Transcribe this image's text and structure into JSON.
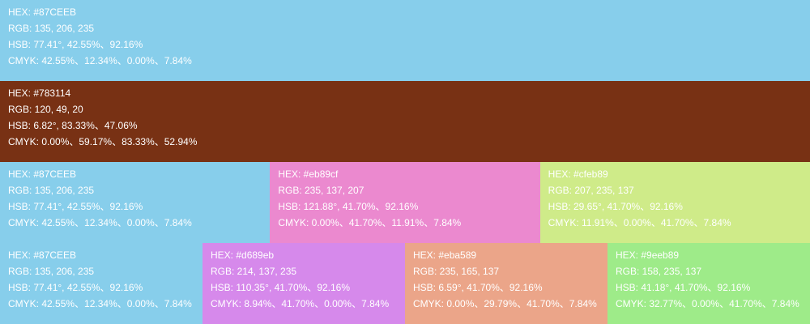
{
  "rows": [
    {
      "blocks": [
        {
          "color": "#87CEEB",
          "lines": [
            "HEX: #87CEEB",
            "RGB: 135, 206, 235",
            "HSB: 77.41°, 42.55%、92.16%",
            "CMYK: 42.55%、12.34%、0.00%、7.84%"
          ]
        }
      ]
    },
    {
      "blocks": [
        {
          "color": "#783114",
          "lines": [
            "HEX: #783114",
            "RGB: 120, 49, 20",
            "HSB: 6.82°, 83.33%、47.06%",
            "CMYK: 0.00%、59.17%、83.33%、52.94%"
          ]
        }
      ]
    },
    {
      "blocks": [
        {
          "color": "#87CEEB",
          "lines": [
            "HEX: #87CEEB",
            "RGB: 135, 206, 235",
            "HSB: 77.41°, 42.55%、92.16%",
            "CMYK: 42.55%、12.34%、0.00%、7.84%"
          ]
        },
        {
          "color": "#eb89cf",
          "lines": [
            "HEX: #eb89cf",
            "RGB: 235, 137, 207",
            "HSB: 121.88°, 41.70%、92.16%",
            "CMYK: 0.00%、41.70%、11.91%、7.84%"
          ]
        },
        {
          "color": "#cfeb89",
          "lines": [
            "HEX: #cfeb89",
            "RGB: 207, 235, 137",
            "HSB: 29.65°, 41.70%、92.16%",
            "CMYK: 11.91%、0.00%、41.70%、7.84%"
          ]
        }
      ]
    },
    {
      "blocks": [
        {
          "color": "#87CEEB",
          "lines": [
            "HEX: #87CEEB",
            "RGB: 135, 206, 235",
            "HSB: 77.41°, 42.55%、92.16%",
            "CMYK: 42.55%、12.34%、0.00%、7.84%"
          ]
        },
        {
          "color": "#d689eb",
          "lines": [
            "HEX: #d689eb",
            "RGB: 214, 137, 235",
            "HSB: 110.35°, 41.70%、92.16%",
            "CMYK: 8.94%、41.70%、0.00%、7.84%"
          ]
        },
        {
          "color": "#eba589",
          "lines": [
            "HEX: #eba589",
            "RGB: 235, 165, 137",
            "HSB: 6.59°, 41.70%、92.16%",
            "CMYK: 0.00%、29.79%、41.70%、7.84%"
          ]
        },
        {
          "color": "#9eeb89",
          "lines": [
            "HEX: #9eeb89",
            "RGB: 158, 235, 137",
            "HSB: 41.18°, 41.70%、92.16%",
            "CMYK: 32.77%、0.00%、41.70%、7.84%"
          ]
        }
      ]
    }
  ]
}
